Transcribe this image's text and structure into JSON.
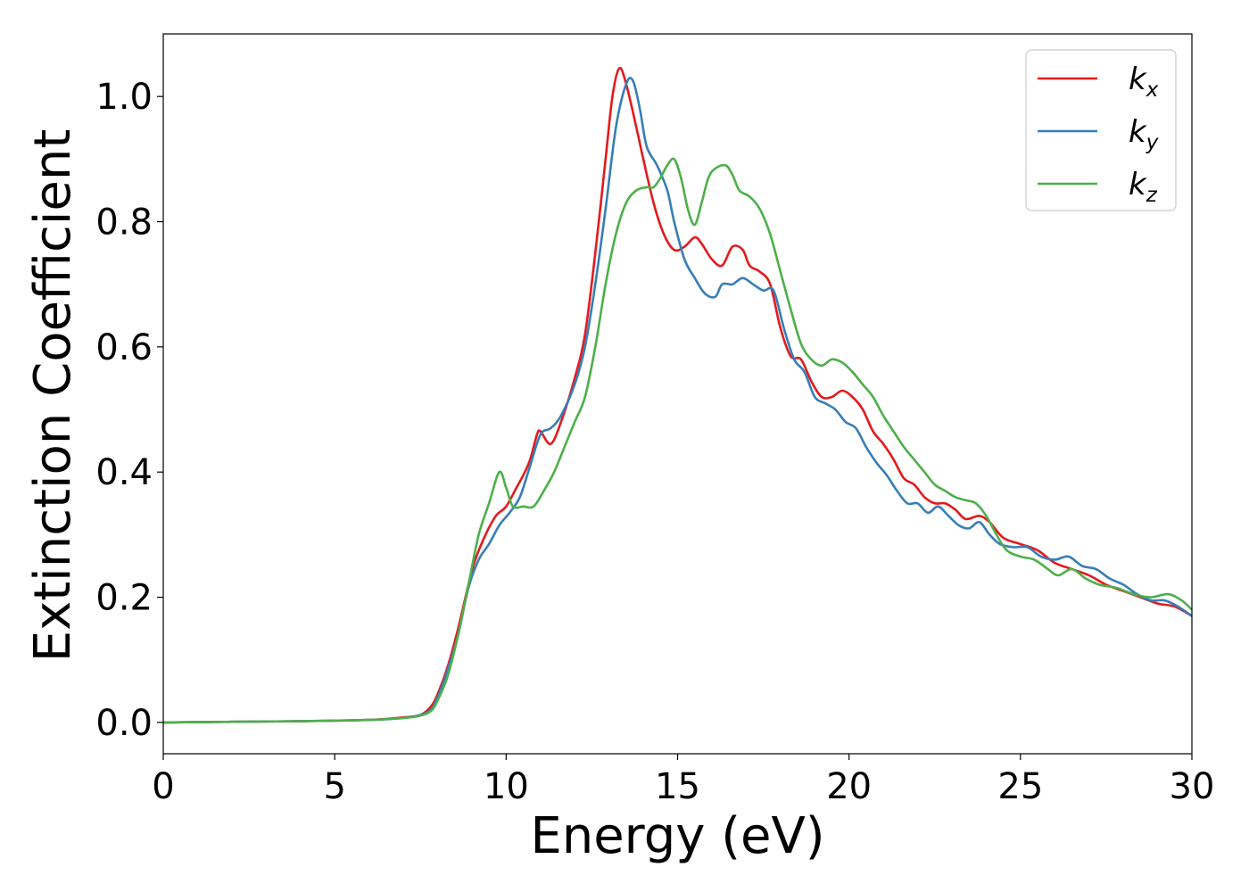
{
  "chart_data": {
    "type": "line",
    "xlabel": "Energy (eV)",
    "ylabel": "Extinction Coefficient",
    "xlim": [
      0,
      30
    ],
    "ylim": [
      -0.05,
      1.1
    ],
    "xticks": [
      0,
      5,
      10,
      15,
      20,
      25,
      30
    ],
    "xtick_labels": [
      "0",
      "5",
      "10",
      "15",
      "20",
      "25",
      "30"
    ],
    "yticks": [
      0.0,
      0.2,
      0.4,
      0.6,
      0.8,
      1.0
    ],
    "ytick_labels": [
      "0.0",
      "0.2",
      "0.4",
      "0.6",
      "0.8",
      "1.0"
    ],
    "grid": false,
    "legend_position": "top-right",
    "series": [
      {
        "name": "k_x",
        "label_main": "k",
        "label_sub": "x",
        "color": "#e41a1c",
        "points": [
          [
            0,
            0.0
          ],
          [
            2,
            0.001
          ],
          [
            4,
            0.002
          ],
          [
            6,
            0.004
          ],
          [
            7,
            0.008
          ],
          [
            7.5,
            0.012
          ],
          [
            7.8,
            0.025
          ],
          [
            8.0,
            0.045
          ],
          [
            8.3,
            0.09
          ],
          [
            8.6,
            0.15
          ],
          [
            8.9,
            0.22
          ],
          [
            9.1,
            0.26
          ],
          [
            9.4,
            0.3
          ],
          [
            9.7,
            0.33
          ],
          [
            10.0,
            0.345
          ],
          [
            10.3,
            0.375
          ],
          [
            10.5,
            0.395
          ],
          [
            10.7,
            0.42
          ],
          [
            10.9,
            0.46
          ],
          [
            11.0,
            0.465
          ],
          [
            11.3,
            0.445
          ],
          [
            11.6,
            0.48
          ],
          [
            12.0,
            0.55
          ],
          [
            12.3,
            0.62
          ],
          [
            12.6,
            0.75
          ],
          [
            12.9,
            0.9
          ],
          [
            13.1,
            1.0
          ],
          [
            13.3,
            1.045
          ],
          [
            13.5,
            1.02
          ],
          [
            13.8,
            0.95
          ],
          [
            14.0,
            0.9
          ],
          [
            14.3,
            0.83
          ],
          [
            14.6,
            0.78
          ],
          [
            14.9,
            0.755
          ],
          [
            15.2,
            0.76
          ],
          [
            15.5,
            0.775
          ],
          [
            15.7,
            0.765
          ],
          [
            16.0,
            0.74
          ],
          [
            16.3,
            0.73
          ],
          [
            16.6,
            0.76
          ],
          [
            16.9,
            0.755
          ],
          [
            17.1,
            0.73
          ],
          [
            17.4,
            0.72
          ],
          [
            17.7,
            0.7
          ],
          [
            18.0,
            0.63
          ],
          [
            18.3,
            0.585
          ],
          [
            18.6,
            0.58
          ],
          [
            18.9,
            0.545
          ],
          [
            19.2,
            0.52
          ],
          [
            19.5,
            0.52
          ],
          [
            19.8,
            0.53
          ],
          [
            20.1,
            0.52
          ],
          [
            20.4,
            0.5
          ],
          [
            20.7,
            0.465
          ],
          [
            21.0,
            0.445
          ],
          [
            21.3,
            0.42
          ],
          [
            21.6,
            0.39
          ],
          [
            21.9,
            0.38
          ],
          [
            22.2,
            0.36
          ],
          [
            22.5,
            0.35
          ],
          [
            22.8,
            0.35
          ],
          [
            23.1,
            0.34
          ],
          [
            23.4,
            0.325
          ],
          [
            23.8,
            0.33
          ],
          [
            24.1,
            0.32
          ],
          [
            24.5,
            0.295
          ],
          [
            25.0,
            0.285
          ],
          [
            25.5,
            0.275
          ],
          [
            26.0,
            0.255
          ],
          [
            26.5,
            0.245
          ],
          [
            27.0,
            0.235
          ],
          [
            27.5,
            0.22
          ],
          [
            28.0,
            0.21
          ],
          [
            28.5,
            0.2
          ],
          [
            29.0,
            0.19
          ],
          [
            29.5,
            0.185
          ],
          [
            30.0,
            0.17
          ]
        ]
      },
      {
        "name": "k_y",
        "label_main": "k",
        "label_sub": "y",
        "color": "#377eb8",
        "points": [
          [
            0,
            0.0
          ],
          [
            2,
            0.001
          ],
          [
            4,
            0.002
          ],
          [
            6,
            0.004
          ],
          [
            7,
            0.007
          ],
          [
            7.5,
            0.012
          ],
          [
            7.8,
            0.02
          ],
          [
            8.0,
            0.04
          ],
          [
            8.3,
            0.085
          ],
          [
            8.6,
            0.14
          ],
          [
            8.9,
            0.215
          ],
          [
            9.2,
            0.26
          ],
          [
            9.5,
            0.285
          ],
          [
            9.8,
            0.315
          ],
          [
            10.1,
            0.335
          ],
          [
            10.4,
            0.36
          ],
          [
            10.7,
            0.41
          ],
          [
            11.0,
            0.46
          ],
          [
            11.3,
            0.47
          ],
          [
            11.6,
            0.49
          ],
          [
            12.0,
            0.54
          ],
          [
            12.3,
            0.6
          ],
          [
            12.6,
            0.7
          ],
          [
            12.9,
            0.82
          ],
          [
            13.2,
            0.95
          ],
          [
            13.5,
            1.02
          ],
          [
            13.7,
            1.025
          ],
          [
            13.9,
            0.98
          ],
          [
            14.1,
            0.92
          ],
          [
            14.4,
            0.89
          ],
          [
            14.7,
            0.85
          ],
          [
            14.9,
            0.8
          ],
          [
            15.2,
            0.74
          ],
          [
            15.5,
            0.71
          ],
          [
            15.8,
            0.685
          ],
          [
            16.1,
            0.68
          ],
          [
            16.3,
            0.7
          ],
          [
            16.6,
            0.7
          ],
          [
            16.9,
            0.71
          ],
          [
            17.2,
            0.7
          ],
          [
            17.5,
            0.69
          ],
          [
            17.8,
            0.69
          ],
          [
            18.1,
            0.63
          ],
          [
            18.4,
            0.58
          ],
          [
            18.7,
            0.56
          ],
          [
            19.0,
            0.52
          ],
          [
            19.3,
            0.51
          ],
          [
            19.6,
            0.5
          ],
          [
            19.9,
            0.48
          ],
          [
            20.2,
            0.47
          ],
          [
            20.5,
            0.44
          ],
          [
            20.8,
            0.415
          ],
          [
            21.1,
            0.395
          ],
          [
            21.4,
            0.37
          ],
          [
            21.7,
            0.35
          ],
          [
            22.0,
            0.35
          ],
          [
            22.3,
            0.335
          ],
          [
            22.6,
            0.345
          ],
          [
            22.9,
            0.33
          ],
          [
            23.2,
            0.315
          ],
          [
            23.5,
            0.31
          ],
          [
            23.8,
            0.32
          ],
          [
            24.1,
            0.3
          ],
          [
            24.4,
            0.285
          ],
          [
            24.8,
            0.28
          ],
          [
            25.2,
            0.28
          ],
          [
            25.6,
            0.265
          ],
          [
            26.0,
            0.26
          ],
          [
            26.4,
            0.265
          ],
          [
            26.8,
            0.25
          ],
          [
            27.2,
            0.245
          ],
          [
            27.6,
            0.23
          ],
          [
            28.0,
            0.22
          ],
          [
            28.4,
            0.205
          ],
          [
            28.8,
            0.195
          ],
          [
            29.2,
            0.195
          ],
          [
            29.6,
            0.185
          ],
          [
            30.0,
            0.17
          ]
        ]
      },
      {
        "name": "k_z",
        "label_main": "k",
        "label_sub": "z",
        "color": "#4daf4a",
        "points": [
          [
            0,
            0.0
          ],
          [
            2,
            0.001
          ],
          [
            4,
            0.002
          ],
          [
            6,
            0.004
          ],
          [
            7,
            0.007
          ],
          [
            7.5,
            0.011
          ],
          [
            7.8,
            0.018
          ],
          [
            8.0,
            0.035
          ],
          [
            8.3,
            0.075
          ],
          [
            8.6,
            0.14
          ],
          [
            8.9,
            0.22
          ],
          [
            9.2,
            0.3
          ],
          [
            9.5,
            0.35
          ],
          [
            9.8,
            0.4
          ],
          [
            10.0,
            0.375
          ],
          [
            10.2,
            0.345
          ],
          [
            10.5,
            0.345
          ],
          [
            10.8,
            0.345
          ],
          [
            11.1,
            0.37
          ],
          [
            11.4,
            0.4
          ],
          [
            11.7,
            0.44
          ],
          [
            12.0,
            0.48
          ],
          [
            12.3,
            0.52
          ],
          [
            12.6,
            0.6
          ],
          [
            12.9,
            0.7
          ],
          [
            13.2,
            0.78
          ],
          [
            13.5,
            0.83
          ],
          [
            13.8,
            0.85
          ],
          [
            14.1,
            0.855
          ],
          [
            14.3,
            0.855
          ],
          [
            14.5,
            0.87
          ],
          [
            14.7,
            0.89
          ],
          [
            14.9,
            0.9
          ],
          [
            15.1,
            0.87
          ],
          [
            15.3,
            0.82
          ],
          [
            15.5,
            0.795
          ],
          [
            15.7,
            0.83
          ],
          [
            15.9,
            0.87
          ],
          [
            16.1,
            0.885
          ],
          [
            16.4,
            0.89
          ],
          [
            16.6,
            0.875
          ],
          [
            16.8,
            0.85
          ],
          [
            17.1,
            0.84
          ],
          [
            17.4,
            0.82
          ],
          [
            17.7,
            0.78
          ],
          [
            18.0,
            0.72
          ],
          [
            18.3,
            0.66
          ],
          [
            18.6,
            0.605
          ],
          [
            18.9,
            0.58
          ],
          [
            19.2,
            0.57
          ],
          [
            19.5,
            0.58
          ],
          [
            19.8,
            0.575
          ],
          [
            20.1,
            0.56
          ],
          [
            20.4,
            0.54
          ],
          [
            20.7,
            0.52
          ],
          [
            21.0,
            0.49
          ],
          [
            21.3,
            0.465
          ],
          [
            21.6,
            0.44
          ],
          [
            21.9,
            0.42
          ],
          [
            22.2,
            0.4
          ],
          [
            22.5,
            0.38
          ],
          [
            22.8,
            0.37
          ],
          [
            23.1,
            0.36
          ],
          [
            23.4,
            0.355
          ],
          [
            23.7,
            0.35
          ],
          [
            24.0,
            0.33
          ],
          [
            24.3,
            0.3
          ],
          [
            24.6,
            0.275
          ],
          [
            25.0,
            0.265
          ],
          [
            25.4,
            0.26
          ],
          [
            25.8,
            0.245
          ],
          [
            26.1,
            0.235
          ],
          [
            26.5,
            0.245
          ],
          [
            26.9,
            0.23
          ],
          [
            27.3,
            0.22
          ],
          [
            27.8,
            0.215
          ],
          [
            28.3,
            0.205
          ],
          [
            28.8,
            0.2
          ],
          [
            29.3,
            0.205
          ],
          [
            29.7,
            0.195
          ],
          [
            30.0,
            0.18
          ]
        ]
      }
    ]
  }
}
